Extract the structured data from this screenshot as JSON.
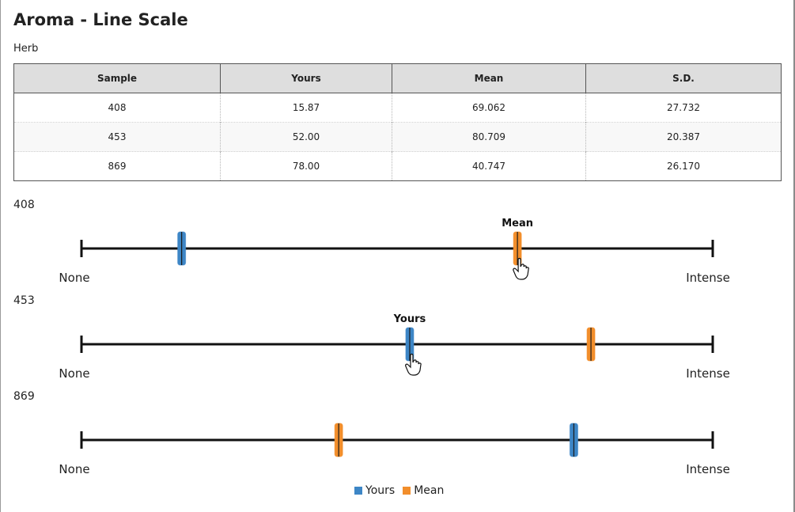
{
  "page": {
    "title": "Aroma - Line Scale",
    "subtitle": "Herb"
  },
  "table": {
    "headers": [
      "Sample",
      "Yours",
      "Mean",
      "S.D."
    ],
    "rows": [
      [
        "408",
        "15.87",
        "69.062",
        "27.732"
      ],
      [
        "453",
        "52.00",
        "80.709",
        "20.387"
      ],
      [
        "869",
        "78.00",
        "40.747",
        "26.170"
      ]
    ]
  },
  "chart_data": {
    "type": "scatter",
    "xlim": [
      0,
      100
    ],
    "low_anchor": "None",
    "high_anchor": "Intense",
    "series": [
      {
        "name": "Yours",
        "color": "#3d86c6"
      },
      {
        "name": "Mean",
        "color": "#f28e2b"
      }
    ],
    "samples": [
      {
        "label": "408",
        "yours": 15.87,
        "mean": 69.062,
        "annotation": "Mean",
        "annotated": "mean"
      },
      {
        "label": "453",
        "yours": 52.0,
        "mean": 80.709,
        "annotation": "Yours",
        "annotated": "yours"
      },
      {
        "label": "869",
        "yours": 78.0,
        "mean": 40.747,
        "annotation": "",
        "annotated": ""
      }
    ]
  },
  "legend": {
    "yours_label": "Yours",
    "mean_label": "Mean",
    "yours_color": "#3d86c6",
    "mean_color": "#f28e2b"
  },
  "icons": {
    "cursor": "hand-pointer-icon"
  }
}
